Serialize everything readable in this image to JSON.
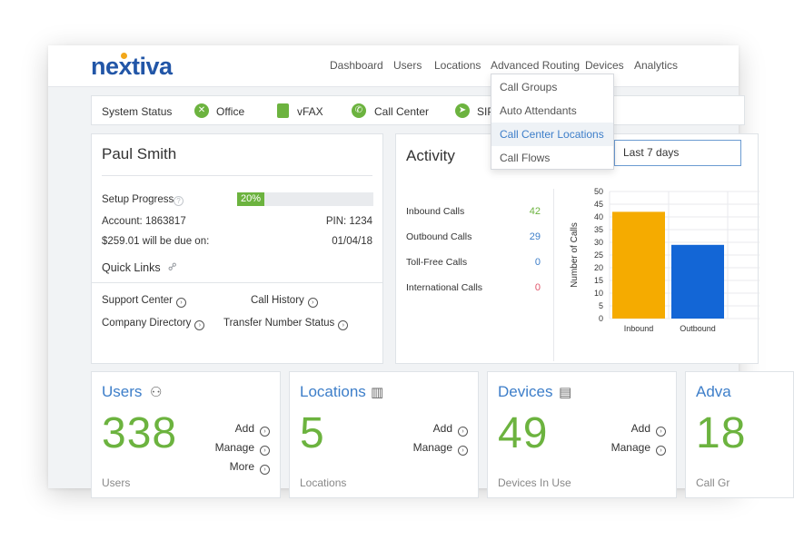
{
  "brand": {
    "name": "nextiva",
    "accent": "#2256a7",
    "dot": "#f2a71a",
    "green": "#6cb33f",
    "link": "#3d7ec9"
  },
  "nav": {
    "items": [
      "Dashboard",
      "Users",
      "Locations",
      "Advanced Routing",
      "Devices",
      "Analytics"
    ]
  },
  "routing_menu": {
    "items": [
      "Call Groups",
      "Auto Attendants",
      "Call Center Locations",
      "Call Flows"
    ],
    "active": "Call Center Locations"
  },
  "system_status": {
    "label": "System Status",
    "services": [
      {
        "name": "Office",
        "icon": "office-icon"
      },
      {
        "name": "vFAX",
        "icon": "fax-document-icon"
      },
      {
        "name": "Call Center",
        "icon": "phone-icon"
      },
      {
        "name": "SIP",
        "icon": "sip-icon"
      }
    ]
  },
  "account": {
    "name": "Paul Smith",
    "setup_progress_label": "Setup Progress",
    "setup_progress": "20%",
    "setup_progress_fraction": 0.2,
    "account_label": "Account: 1863817",
    "pin_label": "PIN: 1234",
    "due_label": "$259.01 will be due on:",
    "due_date": "01/04/18",
    "quick_links_label": "Quick Links",
    "links": [
      "Support Center",
      "Call History",
      "Company Directory",
      "Transfer Number Status"
    ]
  },
  "activity": {
    "title": "Activity",
    "range": "Last 7 days",
    "stats": [
      {
        "label": "Inbound Calls",
        "value": "42",
        "color": "#6cb33f"
      },
      {
        "label": "Outbound Calls",
        "value": "29",
        "color": "#3d7ec9"
      },
      {
        "label": "Toll-Free Calls",
        "value": "0",
        "color": "#3d7ec9"
      },
      {
        "label": "International Calls",
        "value": "0",
        "color": "#e0556a"
      }
    ]
  },
  "chart_data": {
    "type": "bar",
    "categories": [
      "Inbound",
      "Outbound"
    ],
    "values": [
      42,
      29
    ],
    "colors": [
      "#f5ab00",
      "#1366d6"
    ],
    "ylabel": "Number of Calls",
    "ylim": [
      0,
      50
    ],
    "yticks": [
      0,
      5,
      10,
      15,
      20,
      25,
      30,
      35,
      40,
      45,
      50
    ],
    "grid": true
  },
  "tiles": {
    "users": {
      "title": "Users",
      "count": "338",
      "sub": "Users",
      "actions": [
        "Add",
        "Manage",
        "More"
      ]
    },
    "locations": {
      "title": "Locations",
      "count": "5",
      "sub": "Locations",
      "actions": [
        "Add",
        "Manage"
      ]
    },
    "devices": {
      "title": "Devices",
      "count": "49",
      "sub": "Devices In Use",
      "actions": [
        "Add",
        "Manage"
      ]
    },
    "advanced": {
      "title": "Adva",
      "count": "18",
      "sub": "Call Gr"
    }
  }
}
